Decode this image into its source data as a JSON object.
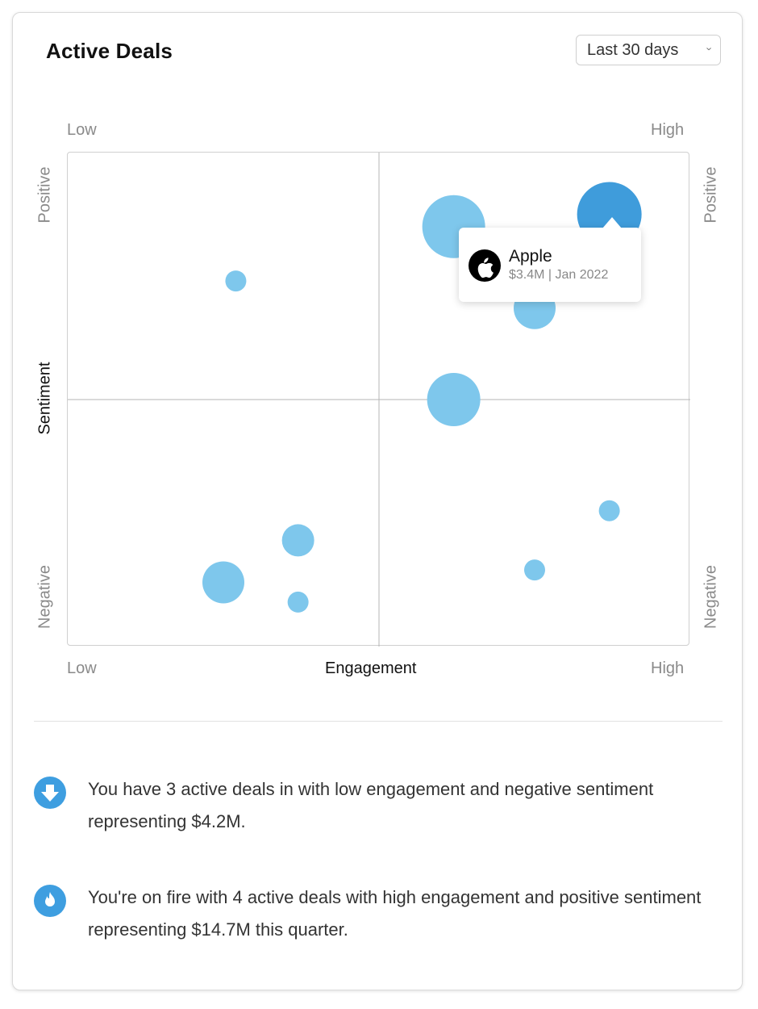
{
  "card": {
    "title": "Active Deals"
  },
  "filter": {
    "selected": "Last 30 days",
    "chevron": "›"
  },
  "chart_data": {
    "type": "scatter",
    "xlabel": "Engagement",
    "ylabel": "Sentiment",
    "x_low_label": "Low",
    "x_high_label": "High",
    "y_positive_label": "Positive",
    "y_negative_label": "Negative",
    "xlim": [
      0,
      100
    ],
    "ylim": [
      -100,
      100
    ],
    "grid": "quadrant",
    "points": [
      {
        "x": 27,
        "y": 48,
        "r": 13,
        "highlight": false
      },
      {
        "x": 62,
        "y": 70,
        "r": 39,
        "highlight": false
      },
      {
        "x": 87,
        "y": 75,
        "r": 40,
        "highlight": true
      },
      {
        "x": 75,
        "y": 37,
        "r": 26,
        "highlight": false
      },
      {
        "x": 62,
        "y": 0,
        "r": 33,
        "highlight": false
      },
      {
        "x": 87,
        "y": -45,
        "r": 13,
        "highlight": false
      },
      {
        "x": 75,
        "y": -69,
        "r": 13,
        "highlight": false
      },
      {
        "x": 37,
        "y": -57,
        "r": 20,
        "highlight": false
      },
      {
        "x": 25,
        "y": -74,
        "r": 26,
        "highlight": false
      },
      {
        "x": 37,
        "y": -82,
        "r": 13,
        "highlight": false
      }
    ],
    "colors": {
      "bubble": "#7ec7ec",
      "highlight": "#3f9cdb",
      "gridline": "#b5b5b5"
    },
    "tooltip": {
      "name": "Apple",
      "detail": "$3.4M | Jan 2022",
      "icon": "apple-logo-icon"
    }
  },
  "insights": [
    {
      "icon": "arrow-down-icon",
      "text": "You have 3 active deals in with low engagement and negative sentiment representing $4.2M."
    },
    {
      "icon": "fire-icon",
      "text": "You're on fire with 4 active deals with high engagement and positive sentiment representing $14.7M this quarter."
    }
  ]
}
